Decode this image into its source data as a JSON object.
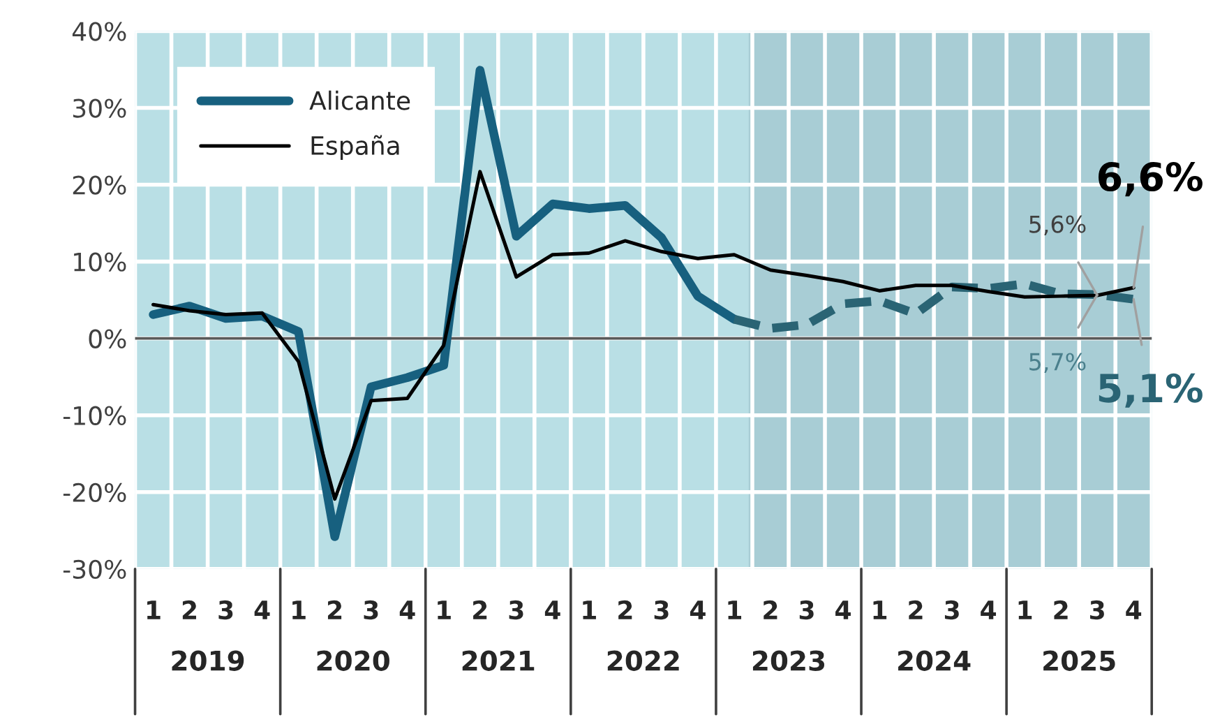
{
  "chart_data": {
    "type": "line",
    "categories": [
      "1",
      "2",
      "3",
      "4",
      "1",
      "2",
      "3",
      "4",
      "1",
      "2",
      "3",
      "4",
      "1",
      "2",
      "3",
      "4",
      "1",
      "2",
      "3",
      "4",
      "1",
      "2",
      "3",
      "4",
      "1",
      "2",
      "3",
      "4"
    ],
    "series": [
      {
        "name": "Alicante",
        "color": "#17607f",
        "line_style": "solid",
        "values": [
          3.1,
          4.2,
          2.6,
          2.9,
          0.9,
          -25.8,
          -6.3,
          -5.1,
          -3.5,
          34.9,
          13.3,
          17.5,
          16.9,
          17.3,
          13.1,
          5.5,
          2.5,
          null,
          null,
          null,
          null,
          null,
          null,
          null,
          null,
          null,
          null,
          null
        ]
      },
      {
        "color": "#2a6474",
        "line_style": "dashed",
        "values": [
          null,
          null,
          null,
          null,
          null,
          null,
          null,
          null,
          null,
          null,
          null,
          null,
          null,
          null,
          null,
          null,
          2.5,
          1.3,
          1.8,
          4.5,
          4.9,
          3.2,
          6.7,
          6.5,
          7.1,
          5.8,
          5.7,
          5.1
        ],
        "value_labels": [
          null,
          null,
          null,
          null,
          null,
          null,
          null,
          null,
          null,
          null,
          null,
          null,
          null,
          null,
          null,
          null,
          null,
          null,
          null,
          null,
          null,
          null,
          null,
          null,
          null,
          null,
          "5,7%",
          "5,1%"
        ]
      },
      {
        "name": "España",
        "color": "#000000",
        "line_style": "solid",
        "values": [
          4.4,
          3.6,
          3.1,
          3.3,
          -3.0,
          -20.9,
          -8.1,
          -7.8,
          -0.9,
          21.7,
          8.0,
          10.9,
          11.1,
          12.7,
          11.3,
          10.4,
          10.9,
          8.9,
          8.2,
          7.4,
          6.2,
          6.9,
          6.9,
          6.1,
          5.4,
          5.5,
          5.6,
          6.6
        ],
        "value_labels": [
          null,
          null,
          null,
          null,
          null,
          null,
          null,
          null,
          null,
          null,
          null,
          null,
          null,
          null,
          null,
          null,
          null,
          null,
          null,
          null,
          null,
          null,
          null,
          null,
          null,
          null,
          "5,6%",
          "6,6%"
        ]
      }
    ],
    "ylim": [
      -30,
      40
    ],
    "yticks": [
      {
        "value": -30,
        "label": "-30%"
      },
      {
        "value": -20,
        "label": "-20%"
      },
      {
        "value": -10,
        "label": "-10%"
      },
      {
        "value": 0,
        "label": "0%"
      },
      {
        "value": 10,
        "label": "10%"
      },
      {
        "value": 20,
        "label": "20%"
      },
      {
        "value": 30,
        "label": "30%"
      },
      {
        "value": 40,
        "label": "40%"
      }
    ],
    "grid": true,
    "legend": "top left",
    "ref_lines": [
      {
        "axis": "y",
        "value": 0,
        "color": "#595959"
      }
    ],
    "annotations": [
      "2019",
      "2020",
      "2021",
      "2022",
      "2023",
      "2024",
      "2025"
    ]
  }
}
